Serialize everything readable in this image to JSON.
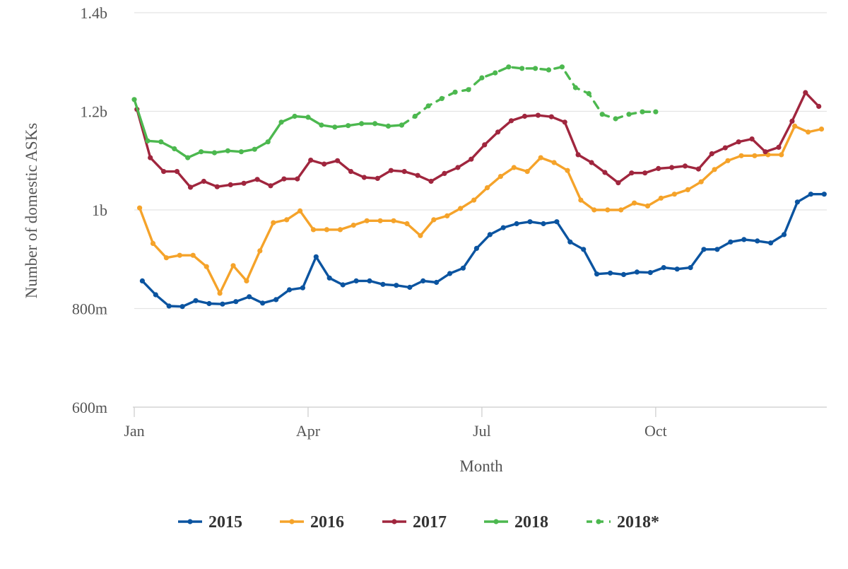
{
  "chart_data": {
    "type": "line",
    "title": "",
    "xlabel": "Month",
    "ylabel": "Number of domestic ASKs",
    "x_unit": "week of year",
    "x_ticks": [
      {
        "label": "Jan",
        "x": 1
      },
      {
        "label": "Apr",
        "x": 14
      },
      {
        "label": "Jul",
        "x": 27
      },
      {
        "label": "Oct",
        "x": 40
      }
    ],
    "xlim": [
      1,
      53
    ],
    "y_ticks": [
      {
        "label": "600m",
        "y": 600000000
      },
      {
        "label": "800m",
        "y": 800000000
      },
      {
        "label": "1b",
        "y": 1000000000
      },
      {
        "label": "1.2b",
        "y": 1200000000
      },
      {
        "label": "1.4b",
        "y": 1400000000
      }
    ],
    "ylim": [
      600000000,
      1400000000
    ],
    "grid": "horizontal",
    "legend_position": "bottom-center",
    "series": [
      {
        "name": "2015",
        "color": "#0b54a0",
        "dashed": false,
        "x_start": 1.6,
        "values": [
          856000000,
          828000000,
          805000000,
          804000000,
          816000000,
          810000000,
          809000000,
          814000000,
          824000000,
          811000000,
          818000000,
          838000000,
          842000000,
          905000000,
          862000000,
          848000000,
          856000000,
          856000000,
          849000000,
          847000000,
          843000000,
          856000000,
          853000000,
          871000000,
          882000000,
          922000000,
          950000000,
          964000000,
          972000000,
          976000000,
          972000000,
          976000000,
          935000000,
          920000000,
          870000000,
          872000000,
          869000000,
          874000000,
          873000000,
          883000000,
          880000000,
          883000000,
          920000000,
          920000000,
          935000000,
          940000000,
          937000000,
          933000000,
          950000000,
          1016000000,
          1032000000,
          1032000000
        ]
      },
      {
        "name": "2016",
        "color": "#f5a32a",
        "dashed": false,
        "x_start": 1.4,
        "values": [
          1004000000,
          932000000,
          903000000,
          908000000,
          908000000,
          885000000,
          831000000,
          887000000,
          856000000,
          917000000,
          974000000,
          980000000,
          998000000,
          960000000,
          960000000,
          960000000,
          969000000,
          978000000,
          978000000,
          978000000,
          972000000,
          948000000,
          980000000,
          988000000,
          1003000000,
          1020000000,
          1045000000,
          1068000000,
          1086000000,
          1078000000,
          1106000000,
          1096000000,
          1080000000,
          1020000000,
          1000000000,
          1000000000,
          1000000000,
          1014000000,
          1008000000,
          1024000000,
          1032000000,
          1041000000,
          1057000000,
          1082000000,
          1100000000,
          1110000000,
          1110000000,
          1112000000,
          1112000000,
          1170000000,
          1158000000,
          1164000000
        ]
      },
      {
        "name": "2017",
        "color": "#a0263e",
        "dashed": false,
        "x_start": 1.2,
        "values": [
          1204000000,
          1106000000,
          1078000000,
          1078000000,
          1046000000,
          1058000000,
          1047000000,
          1051000000,
          1054000000,
          1062000000,
          1049000000,
          1063000000,
          1063000000,
          1101000000,
          1093000000,
          1100000000,
          1078000000,
          1066000000,
          1064000000,
          1080000000,
          1078000000,
          1070000000,
          1058000000,
          1074000000,
          1086000000,
          1103000000,
          1132000000,
          1158000000,
          1181000000,
          1190000000,
          1192000000,
          1189000000,
          1178000000,
          1112000000,
          1096000000,
          1076000000,
          1055000000,
          1075000000,
          1075000000,
          1084000000,
          1086000000,
          1089000000,
          1083000000,
          1114000000,
          1126000000,
          1138000000,
          1144000000,
          1118000000,
          1127000000,
          1180000000,
          1238000000,
          1210000000
        ]
      },
      {
        "name": "2018",
        "color": "#4cb84f",
        "dashed": false,
        "x_start": 1.0,
        "values": [
          1224000000,
          1140000000,
          1138000000,
          1124000000,
          1106000000,
          1118000000,
          1116000000,
          1120000000,
          1118000000,
          1123000000,
          1138000000,
          1178000000,
          1190000000,
          1188000000,
          1172000000,
          1168000000,
          1171000000,
          1175000000,
          1175000000,
          1170000000,
          1172000000
        ]
      },
      {
        "name": "2018*",
        "color": "#4cb84f",
        "dashed": true,
        "x_start": 21.0,
        "values": [
          1172000000,
          1190000000,
          1211000000,
          1226000000,
          1239000000,
          1244000000,
          1268000000,
          1278000000,
          1290000000,
          1287000000,
          1287000000,
          1284000000,
          1290000000,
          1248000000,
          1236000000,
          1194000000,
          1185000000,
          1194000000,
          1199000000,
          1199000000
        ]
      }
    ]
  }
}
